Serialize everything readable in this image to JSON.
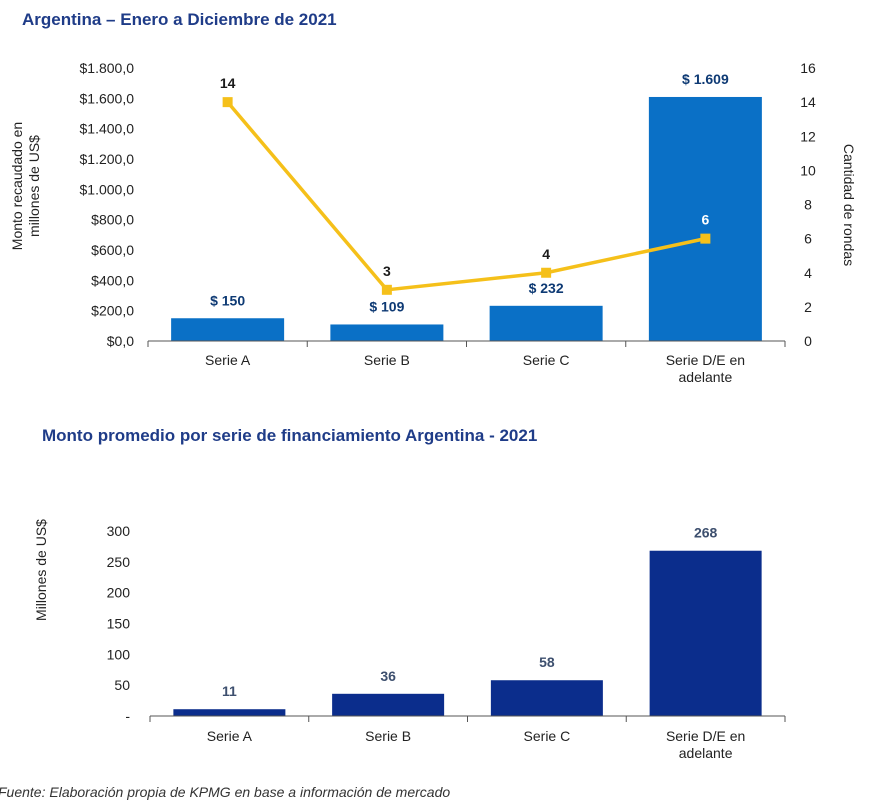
{
  "colors": {
    "bar1": "#0a70c6",
    "line": "#f5c01a",
    "bar2": "#0b2d8c",
    "title": "#1f3c88",
    "axis": "#555555"
  },
  "chart_data": [
    {
      "type": "bar+line",
      "title": "Argentina – Enero a Diciembre de 2021",
      "categories": [
        "Serie A",
        "Serie B",
        "Serie C",
        "Serie D/E en adelante"
      ],
      "category_lines": [
        [
          "Serie A"
        ],
        [
          "Serie B"
        ],
        [
          "Serie C"
        ],
        [
          "Serie D/E en",
          "adelante"
        ]
      ],
      "bars": {
        "name": "Monto recaudado",
        "values": [
          150,
          109,
          232,
          1609
        ],
        "labels": [
          "$ 150",
          "$ 109",
          "$ 232",
          "$ 1.609"
        ]
      },
      "line": {
        "name": "Cantidad de rondas",
        "values": [
          14,
          3,
          4,
          6
        ],
        "labels": [
          "14",
          "3",
          "4",
          "6"
        ]
      },
      "ylabel_left": [
        "Monto recaudado en",
        "millones de US$"
      ],
      "ylabel_right": "Cantidad de rondas",
      "ylim_left": [
        0,
        1800
      ],
      "ylim_right": [
        0,
        16
      ],
      "yticks_left": [
        "$0,0",
        "$200,0",
        "$400,0",
        "$600,0",
        "$800,0",
        "$1.000,0",
        "$1.200,0",
        "$1.400,0",
        "$1.600,0",
        "$1.800,0"
      ],
      "yticks_right": [
        "0",
        "2",
        "4",
        "6",
        "8",
        "10",
        "12",
        "14",
        "16"
      ]
    },
    {
      "type": "bar",
      "title": "Monto promedio por serie de financiamiento Argentina - 2021",
      "categories": [
        "Serie A",
        "Serie B",
        "Serie C",
        "Serie D/E en adelante"
      ],
      "category_lines": [
        [
          "Serie A"
        ],
        [
          "Serie B"
        ],
        [
          "Serie C"
        ],
        [
          "Serie D/E en",
          "adelante"
        ]
      ],
      "values": [
        11,
        36,
        58,
        268
      ],
      "labels": [
        "11",
        "36",
        "58",
        "268"
      ],
      "ylabel": "Millones de US$",
      "ylim": [
        0,
        300
      ],
      "yticks": [
        "-",
        "50",
        "100",
        "150",
        "200",
        "250",
        "300"
      ]
    }
  ],
  "source": "Fuente: Elaboración propia de KPMG en base a información de mercado"
}
